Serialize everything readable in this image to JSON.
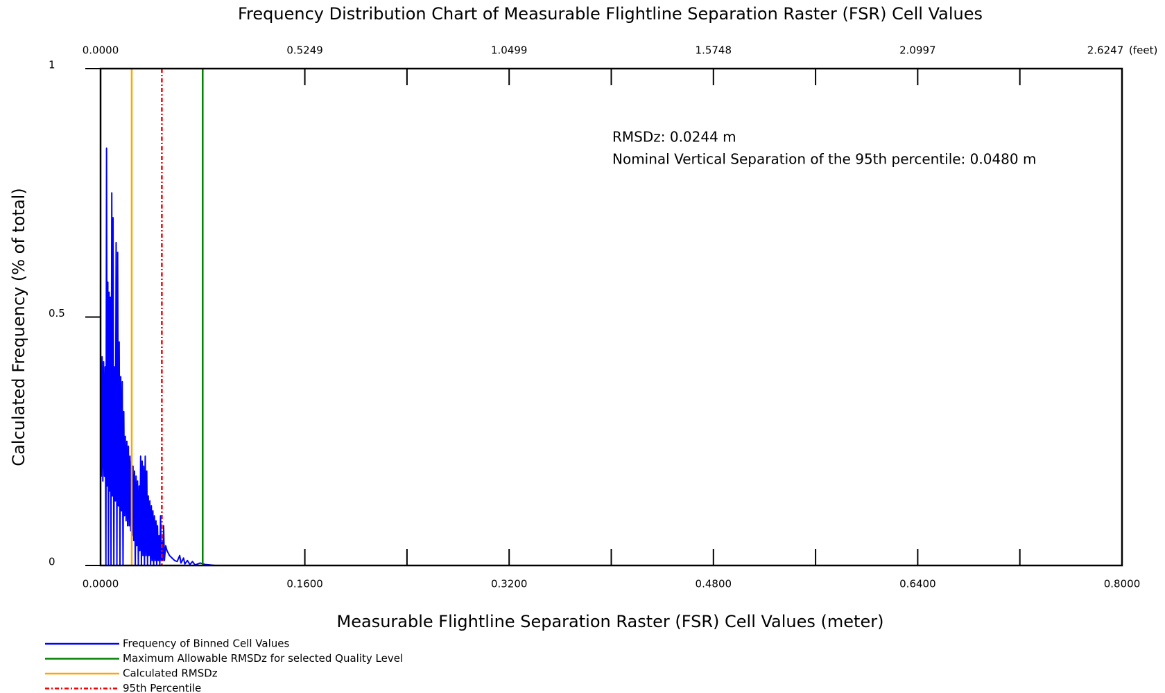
{
  "chart_data": {
    "type": "line",
    "title": "Frequency Distribution Chart of Measurable Flightline Separation Raster (FSR) Cell Values",
    "xlabel": "Measurable Flightline Separation Raster (FSR) Cell Values (meter)",
    "ylabel": "Calculated Frequency (% of total)",
    "x2_unit": "(feet)",
    "xlim": [
      0,
      0.8
    ],
    "ylim": [
      0,
      1
    ],
    "x2lim": [
      0,
      2.6247
    ],
    "xticks": [
      {
        "value": 0,
        "label": "0.0000"
      },
      {
        "value": 0.16,
        "label": "0.1600"
      },
      {
        "value": 0.32,
        "label": "0.3200"
      },
      {
        "value": 0.48,
        "label": "0.4800"
      },
      {
        "value": 0.64,
        "label": "0.6400"
      },
      {
        "value": 0.8,
        "label": "0.8000"
      }
    ],
    "xminorticks": [
      0.08,
      0.24,
      0.4,
      0.56,
      0.72
    ],
    "x2ticks": [
      {
        "value": 0,
        "label": "0.0000"
      },
      0.5249,
      1.0499,
      1.5748,
      2.0997,
      2.6247
    ],
    "yticks": [
      0,
      0.5,
      1
    ],
    "annotations": [
      "RMSDz: 0.0244 m",
      "Nominal Vertical Separation of the 95th percentile: 0.0480 m"
    ],
    "series": [
      {
        "name": "Frequency of Binned Cell Values",
        "color": "#0000ff",
        "x": [
          0,
          0.0006,
          0.0012,
          0.0018,
          0.0024,
          0.003,
          0.0036,
          0.0042,
          0.0047,
          0.0052,
          0.0057,
          0.0062,
          0.0067,
          0.0072,
          0.0077,
          0.0082,
          0.0088,
          0.0093,
          0.0098,
          0.0104,
          0.011,
          0.0116,
          0.0122,
          0.0128,
          0.0134,
          0.014,
          0.0146,
          0.0152,
          0.0158,
          0.0164,
          0.017,
          0.0176,
          0.0182,
          0.0188,
          0.0194,
          0.02,
          0.0206,
          0.0212,
          0.0218,
          0.0224,
          0.023,
          0.0236,
          0.0242,
          0.0248,
          0.0254,
          0.026,
          0.0266,
          0.0272,
          0.0278,
          0.0284,
          0.029,
          0.0296,
          0.0302,
          0.0308,
          0.0314,
          0.032,
          0.0326,
          0.0332,
          0.0338,
          0.0344,
          0.035,
          0.0356,
          0.0362,
          0.0368,
          0.0374,
          0.038,
          0.0386,
          0.0392,
          0.0398,
          0.0404,
          0.041,
          0.0416,
          0.0422,
          0.0428,
          0.0434,
          0.044,
          0.0446,
          0.0452,
          0.0458,
          0.0464,
          0.047,
          0.0476,
          0.0482,
          0.0488,
          0.0494,
          0.05,
          0.051,
          0.052,
          0.053,
          0.054,
          0.056,
          0.058,
          0.06,
          0.062,
          0.063,
          0.065,
          0.066,
          0.068,
          0.07,
          0.072,
          0.074,
          0.078,
          0.082,
          0.086,
          0.09,
          0.8
        ],
        "values": [
          0.43,
          0.18,
          0.42,
          0.17,
          0.41,
          0.18,
          0.4,
          0,
          0.84,
          0.16,
          0.57,
          0,
          0.55,
          0.15,
          0.54,
          0,
          0.75,
          0.14,
          0.7,
          0,
          0.4,
          0.13,
          0.65,
          0,
          0.63,
          0.12,
          0.45,
          0,
          0.38,
          0.11,
          0.37,
          0,
          0.31,
          0.1,
          0.26,
          0.09,
          0.25,
          0.08,
          0.24,
          0.08,
          0.22,
          0.07,
          0.21,
          0.06,
          0.2,
          0.05,
          0.19,
          0,
          0.18,
          0.04,
          0.17,
          0,
          0.16,
          0.03,
          0.22,
          0,
          0.21,
          0.02,
          0.2,
          0,
          0.22,
          0.02,
          0.19,
          0,
          0.14,
          0.02,
          0.13,
          0,
          0.12,
          0.01,
          0.11,
          0,
          0.1,
          0.01,
          0.09,
          0,
          0.08,
          0.01,
          0.06,
          0,
          0.1,
          0.01,
          0.05,
          0.01,
          0.08,
          0.01,
          0.04,
          0.03,
          0.025,
          0.02,
          0.015,
          0.01,
          0.008,
          0.02,
          0.005,
          0.015,
          0.003,
          0.01,
          0.002,
          0.008,
          0.001,
          0.005,
          0.002,
          0.001,
          0,
          0
        ]
      }
    ],
    "vlines": [
      {
        "name": "Maximum Allowable RMSDz for selected Quality Level",
        "color": "#008000",
        "value": 0.08,
        "dash": "solid"
      },
      {
        "name": "Calculated RMSDz",
        "color": "#ffa500",
        "value": 0.0244,
        "dash": "solid"
      },
      {
        "name": "95th Percentile",
        "color": "#ff0000",
        "value": 0.048,
        "dash": "dashdot"
      }
    ]
  }
}
